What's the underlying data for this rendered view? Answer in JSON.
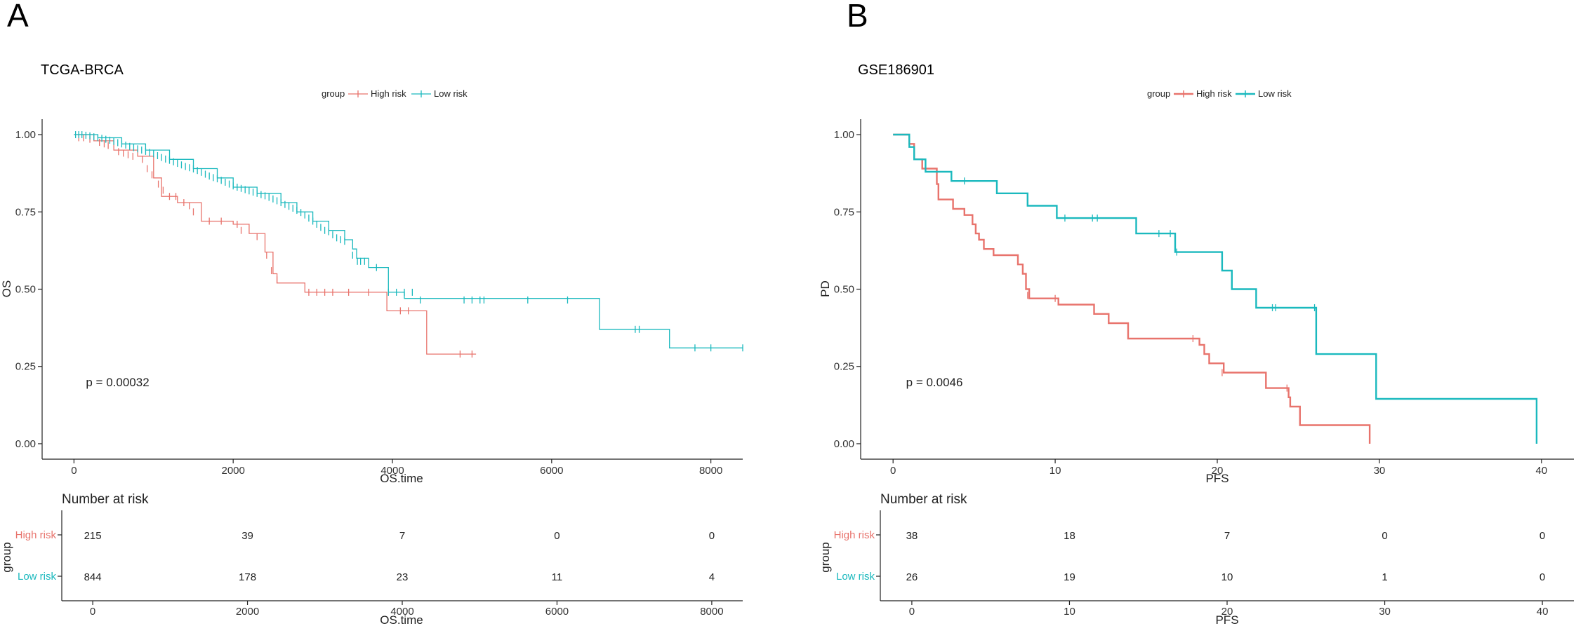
{
  "colors": {
    "high": "#E8736C",
    "low": "#1BB9BE",
    "axis": "#222222"
  },
  "chart_data": [
    {
      "type": "line",
      "panel": "A",
      "title": "TCGA-BRCA",
      "legend_title": "group",
      "legend": [
        "High risk",
        "Low risk"
      ],
      "legend_position": "top",
      "xlabel": "OS.time",
      "ylabel": "OS",
      "xlim": [
        -400,
        8400
      ],
      "ylim": [
        -0.05,
        1.05
      ],
      "x_ticks": [
        0,
        2000,
        4000,
        6000,
        8000
      ],
      "y_ticks": [
        0,
        0.25,
        0.5,
        0.75,
        1.0
      ],
      "y_tick_labels": [
        "0.00",
        "0.25",
        "0.50",
        "0.75",
        "1.00"
      ],
      "p_value": "p = 0.00032",
      "p_pos": [
        150,
        0.2
      ],
      "line_width": 1.3,
      "series": [
        {
          "name": "High risk",
          "steps": [
            [
              0,
              1
            ],
            [
              250,
              0.98
            ],
            [
              500,
              0.95
            ],
            [
              800,
              0.93
            ],
            [
              1000,
              0.86
            ],
            [
              1100,
              0.8
            ],
            [
              1300,
              0.78
            ],
            [
              1600,
              0.72
            ],
            [
              2000,
              0.71
            ],
            [
              2200,
              0.68
            ],
            [
              2400,
              0.62
            ],
            [
              2500,
              0.55
            ],
            [
              2550,
              0.52
            ],
            [
              2900,
              0.49
            ],
            [
              3900,
              0.49
            ],
            [
              3930,
              0.43
            ],
            [
              4400,
              0.43
            ],
            [
              4430,
              0.29
            ],
            [
              5050,
              0.29
            ]
          ],
          "censors": [
            [
              60,
              0.99
            ],
            [
              120,
              0.99
            ],
            [
              200,
              0.985
            ],
            [
              320,
              0.975
            ],
            [
              380,
              0.97
            ],
            [
              430,
              0.965
            ],
            [
              560,
              0.945
            ],
            [
              620,
              0.94
            ],
            [
              680,
              0.935
            ],
            [
              740,
              0.93
            ],
            [
              860,
              0.92
            ],
            [
              920,
              0.89
            ],
            [
              980,
              0.87
            ],
            [
              1060,
              0.84
            ],
            [
              1120,
              0.82
            ],
            [
              1200,
              0.8
            ],
            [
              1280,
              0.8
            ],
            [
              1380,
              0.78
            ],
            [
              1450,
              0.77
            ],
            [
              1500,
              0.75
            ],
            [
              1700,
              0.72
            ],
            [
              1850,
              0.72
            ],
            [
              2050,
              0.71
            ],
            [
              2100,
              0.69
            ],
            [
              2300,
              0.67
            ],
            [
              2420,
              0.61
            ],
            [
              2480,
              0.56
            ],
            [
              2550,
              0.53
            ],
            [
              2950,
              0.49
            ],
            [
              3050,
              0.49
            ],
            [
              3150,
              0.49
            ],
            [
              3250,
              0.49
            ],
            [
              3450,
              0.49
            ],
            [
              3700,
              0.49
            ],
            [
              4100,
              0.43
            ],
            [
              4200,
              0.43
            ],
            [
              4850,
              0.29
            ],
            [
              5000,
              0.29
            ]
          ]
        },
        {
          "name": "Low risk",
          "steps": [
            [
              0,
              1
            ],
            [
              300,
              0.99
            ],
            [
              600,
              0.97
            ],
            [
              900,
              0.95
            ],
            [
              1200,
              0.92
            ],
            [
              1500,
              0.89
            ],
            [
              1800,
              0.86
            ],
            [
              2000,
              0.83
            ],
            [
              2300,
              0.81
            ],
            [
              2600,
              0.78
            ],
            [
              2800,
              0.75
            ],
            [
              3000,
              0.72
            ],
            [
              3200,
              0.69
            ],
            [
              3400,
              0.66
            ],
            [
              3500,
              0.63
            ],
            [
              3550,
              0.6
            ],
            [
              3700,
              0.57
            ],
            [
              3950,
              0.49
            ],
            [
              4150,
              0.47
            ],
            [
              6300,
              0.47
            ],
            [
              6600,
              0.37
            ],
            [
              7450,
              0.37
            ],
            [
              7480,
              0.31
            ],
            [
              8400,
              0.31
            ]
          ],
          "censors": [
            [
              20,
              1
            ],
            [
              60,
              1
            ],
            [
              100,
              1
            ],
            [
              150,
              0.998
            ],
            [
              200,
              0.996
            ],
            [
              250,
              0.993
            ],
            [
              300,
              0.99
            ],
            [
              350,
              0.988
            ],
            [
              400,
              0.985
            ],
            [
              450,
              0.982
            ],
            [
              500,
              0.978
            ],
            [
              550,
              0.974
            ],
            [
              600,
              0.97
            ],
            [
              650,
              0.966
            ],
            [
              700,
              0.962
            ],
            [
              750,
              0.958
            ],
            [
              800,
              0.954
            ],
            [
              850,
              0.95
            ],
            [
              900,
              0.946
            ],
            [
              950,
              0.942
            ],
            [
              1000,
              0.938
            ],
            [
              1050,
              0.932
            ],
            [
              1100,
              0.926
            ],
            [
              1150,
              0.921
            ],
            [
              1200,
              0.917
            ],
            [
              1250,
              0.912
            ],
            [
              1300,
              0.907
            ],
            [
              1350,
              0.902
            ],
            [
              1400,
              0.897
            ],
            [
              1450,
              0.893
            ],
            [
              1500,
              0.889
            ],
            [
              1550,
              0.884
            ],
            [
              1600,
              0.878
            ],
            [
              1650,
              0.872
            ],
            [
              1700,
              0.866
            ],
            [
              1750,
              0.861
            ],
            [
              1800,
              0.857
            ],
            [
              1850,
              0.852
            ],
            [
              1900,
              0.846
            ],
            [
              1950,
              0.84
            ],
            [
              2000,
              0.834
            ],
            [
              2050,
              0.83
            ],
            [
              2100,
              0.826
            ],
            [
              2150,
              0.822
            ],
            [
              2200,
              0.818
            ],
            [
              2250,
              0.814
            ],
            [
              2300,
              0.81
            ],
            [
              2350,
              0.806
            ],
            [
              2400,
              0.802
            ],
            [
              2450,
              0.797
            ],
            [
              2500,
              0.792
            ],
            [
              2550,
              0.786
            ],
            [
              2600,
              0.78
            ],
            [
              2650,
              0.774
            ],
            [
              2700,
              0.768
            ],
            [
              2750,
              0.762
            ],
            [
              2800,
              0.755
            ],
            [
              2850,
              0.748
            ],
            [
              2900,
              0.74
            ],
            [
              2950,
              0.73
            ],
            [
              3000,
              0.72
            ],
            [
              3050,
              0.71
            ],
            [
              3100,
              0.7
            ],
            [
              3150,
              0.69
            ],
            [
              3200,
              0.686
            ],
            [
              3250,
              0.676
            ],
            [
              3300,
              0.666
            ],
            [
              3350,
              0.66
            ],
            [
              3400,
              0.655
            ],
            [
              3500,
              0.61
            ],
            [
              3560,
              0.59
            ],
            [
              3600,
              0.59
            ],
            [
              3650,
              0.59
            ],
            [
              3800,
              0.57
            ],
            [
              3950,
              0.49
            ],
            [
              4050,
              0.49
            ],
            [
              4150,
              0.49
            ],
            [
              4250,
              0.49
            ],
            [
              4350,
              0.465
            ],
            [
              4900,
              0.465
            ],
            [
              5000,
              0.465
            ],
            [
              5100,
              0.465
            ],
            [
              5150,
              0.465
            ],
            [
              5700,
              0.465
            ],
            [
              6200,
              0.465
            ],
            [
              7050,
              0.37
            ],
            [
              7100,
              0.37
            ],
            [
              7800,
              0.31
            ],
            [
              8000,
              0.31
            ],
            [
              8400,
              0.31
            ]
          ]
        }
      ]
    },
    {
      "type": "line",
      "panel": "B",
      "title": "GSE186901",
      "legend_title": "group",
      "legend": [
        "High risk",
        "Low risk"
      ],
      "legend_position": "top",
      "xlabel": "PFS",
      "ylabel": "PD",
      "xlim": [
        -2,
        42
      ],
      "ylim": [
        -0.05,
        1.05
      ],
      "x_ticks": [
        0,
        10,
        20,
        30,
        40
      ],
      "y_ticks": [
        0,
        0.25,
        0.5,
        0.75,
        1.0
      ],
      "y_tick_labels": [
        "0.00",
        "0.25",
        "0.50",
        "0.75",
        "1.00"
      ],
      "p_value": "p = 0.0046",
      "p_pos": [
        0.8,
        0.2
      ],
      "line_width": 2.4,
      "series": [
        {
          "name": "High risk",
          "steps": [
            [
              0,
              1
            ],
            [
              1.0,
              0.97
            ],
            [
              1.3,
              0.92
            ],
            [
              1.8,
              0.89
            ],
            [
              2.7,
              0.84
            ],
            [
              2.8,
              0.79
            ],
            [
              3.7,
              0.76
            ],
            [
              4.4,
              0.74
            ],
            [
              4.9,
              0.71
            ],
            [
              5.1,
              0.68
            ],
            [
              5.3,
              0.66
            ],
            [
              5.6,
              0.63
            ],
            [
              6.2,
              0.61
            ],
            [
              7.7,
              0.58
            ],
            [
              8.0,
              0.55
            ],
            [
              8.2,
              0.5
            ],
            [
              8.4,
              0.47
            ],
            [
              10.2,
              0.45
            ],
            [
              12.4,
              0.42
            ],
            [
              13.3,
              0.39
            ],
            [
              14.5,
              0.34
            ],
            [
              18.9,
              0.32
            ],
            [
              19.2,
              0.29
            ],
            [
              19.5,
              0.26
            ],
            [
              20.4,
              0.23
            ],
            [
              23.0,
              0.18
            ],
            [
              24.4,
              0.15
            ],
            [
              24.5,
              0.12
            ],
            [
              25.1,
              0.06
            ],
            [
              29.4,
              0.06
            ],
            [
              29.4,
              0.0
            ]
          ],
          "censors": [
            [
              8.3,
              0.48
            ],
            [
              10.0,
              0.47
            ],
            [
              18.5,
              0.34
            ],
            [
              20.3,
              0.23
            ],
            [
              24.3,
              0.18
            ]
          ]
        },
        {
          "name": "Low risk",
          "steps": [
            [
              0,
              1
            ],
            [
              1.0,
              0.96
            ],
            [
              1.3,
              0.92
            ],
            [
              2.0,
              0.88
            ],
            [
              3.6,
              0.85
            ],
            [
              6.4,
              0.81
            ],
            [
              8.3,
              0.77
            ],
            [
              10.1,
              0.73
            ],
            [
              15.0,
              0.68
            ],
            [
              17.4,
              0.62
            ],
            [
              20.3,
              0.56
            ],
            [
              20.9,
              0.5
            ],
            [
              22.4,
              0.44
            ],
            [
              26.1,
              0.29
            ],
            [
              29.8,
              0.145
            ],
            [
              39.7,
              0.145
            ],
            [
              39.7,
              0.0
            ]
          ],
          "censors": [
            [
              4.4,
              0.85
            ],
            [
              10.6,
              0.73
            ],
            [
              12.3,
              0.73
            ],
            [
              12.6,
              0.73
            ],
            [
              16.4,
              0.68
            ],
            [
              17.1,
              0.68
            ],
            [
              17.5,
              0.62
            ],
            [
              23.4,
              0.44
            ],
            [
              23.6,
              0.44
            ],
            [
              26.0,
              0.44
            ]
          ]
        }
      ]
    }
  ],
  "risk_tables": [
    {
      "title": "Number at risk",
      "ylabel": "group",
      "xlabel": "OS.time",
      "x_ticks": [
        0,
        2000,
        4000,
        6000,
        8000
      ],
      "xlim": [
        -400,
        8400
      ],
      "rows": [
        {
          "name": "High risk",
          "values": [
            "215",
            "39",
            "7",
            "0",
            "0"
          ]
        },
        {
          "name": "Low risk",
          "values": [
            "844",
            "178",
            "23",
            "11",
            "4"
          ]
        }
      ]
    },
    {
      "title": "Number at risk",
      "ylabel": "group",
      "xlabel": "PFS",
      "x_ticks": [
        0,
        10,
        20,
        30,
        40
      ],
      "xlim": [
        -2,
        42
      ],
      "rows": [
        {
          "name": "High risk",
          "values": [
            "38",
            "18",
            "7",
            "0",
            "0"
          ]
        },
        {
          "name": "Low risk",
          "values": [
            "26",
            "19",
            "10",
            "1",
            "0"
          ]
        }
      ]
    }
  ]
}
